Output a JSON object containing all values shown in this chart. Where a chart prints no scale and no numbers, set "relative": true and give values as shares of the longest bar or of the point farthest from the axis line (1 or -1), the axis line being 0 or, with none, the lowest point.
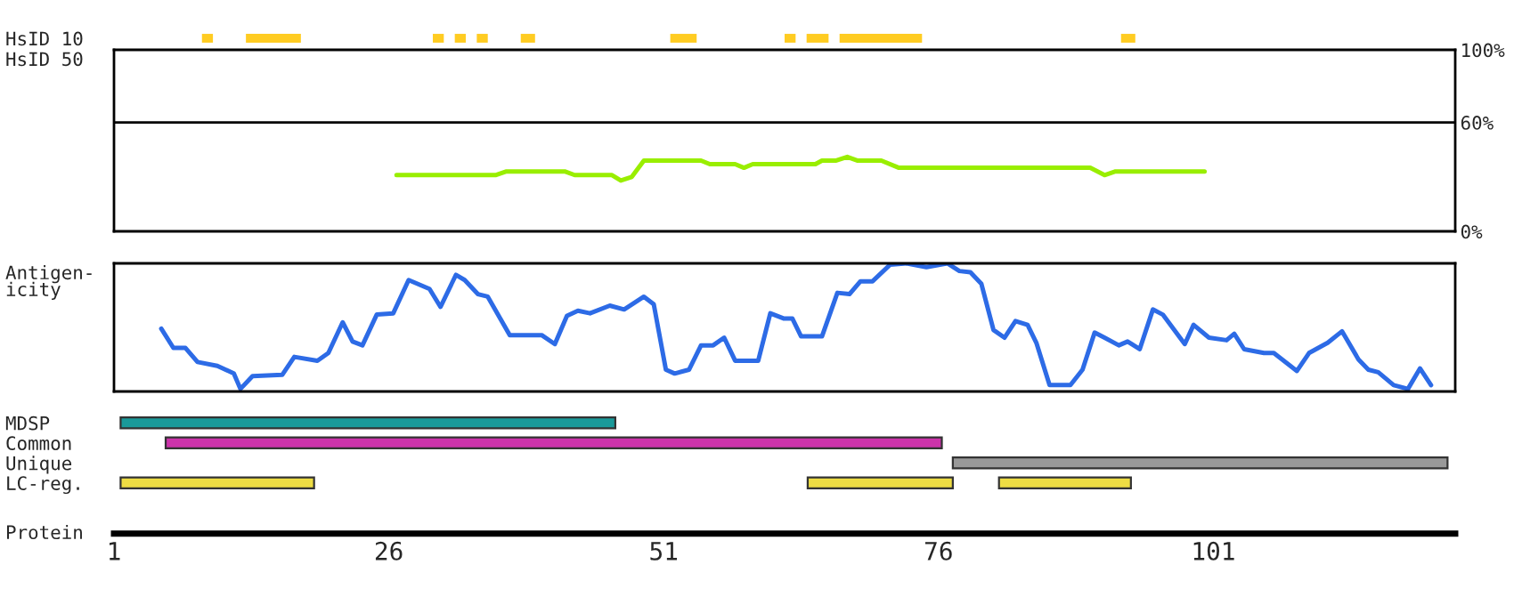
{
  "chart_data": [
    {
      "type": "bar",
      "orientation": "horizontal",
      "categories": [
        "HsID 10"
      ],
      "xlim": [
        1,
        123
      ],
      "tick_labels": "y",
      "series": [
        {
          "color": "#ffcc22",
          "base": [
            9
          ],
          "values": [
            1
          ]
        },
        {
          "color": "#ffcc22",
          "base": [
            13
          ],
          "values": [
            5
          ]
        },
        {
          "color": "#ffcc22",
          "base": [
            30
          ],
          "values": [
            1
          ]
        },
        {
          "color": "#ffcc22",
          "base": [
            32
          ],
          "values": [
            1
          ]
        },
        {
          "color": "#ffcc22",
          "base": [
            34
          ],
          "values": [
            1
          ]
        },
        {
          "color": "#ffcc22",
          "base": [
            38
          ],
          "values": [
            1.3
          ]
        },
        {
          "color": "#ffcc22",
          "base": [
            51.6
          ],
          "values": [
            2.4
          ]
        },
        {
          "color": "#ffcc22",
          "base": [
            62
          ],
          "values": [
            1
          ]
        },
        {
          "color": "#ffcc22",
          "base": [
            64
          ],
          "values": [
            2
          ]
        },
        {
          "color": "#ffcc22",
          "base": [
            67
          ],
          "values": [
            7.5
          ]
        },
        {
          "color": "#ffcc22",
          "base": [
            92.6
          ],
          "values": [
            1.3
          ]
        }
      ]
    },
    {
      "type": "line",
      "ylabel": "HsID 50",
      "xlim": [
        1,
        123
      ],
      "ylim": [
        0,
        100
      ],
      "tick_labels": "y",
      "yticks": [
        {
          "value": 100,
          "label": "100%"
        },
        {
          "value": 60,
          "label": "60%"
        },
        {
          "value": 0,
          "label": "0%"
        }
      ],
      "ref_lines": [
        {
          "axis": "y",
          "value": 60,
          "color": "#000000"
        }
      ],
      "series": [
        {
          "color": "#99ee00",
          "x": [
            26.7,
            35.7,
            36.7,
            42,
            42.9,
            46.3,
            47.1,
            48.1,
            49.2,
            54.4,
            55.2,
            57.5,
            58.3,
            59.1,
            64.8,
            65.4,
            66.7,
            67.7,
            68.6,
            70.8,
            72.4,
            89.8,
            91.1,
            92.1,
            100.2
          ],
          "values": [
            31,
            31,
            33,
            33,
            31,
            31,
            28,
            30,
            39,
            39,
            37,
            37,
            35,
            37,
            37,
            39,
            39,
            41,
            39,
            39,
            35,
            35,
            31,
            33,
            33
          ]
        }
      ]
    },
    {
      "type": "line",
      "ylabel": "Antigen-\nicity",
      "xlim": [
        1,
        123
      ],
      "relative": true,
      "tick_labels": false,
      "series": [
        {
          "color": "#2d6be6",
          "x": [
            5.3,
            6.4,
            7.5,
            8.6,
            10.4,
            11.9,
            12.5,
            13.6,
            16.3,
            17.4,
            19.5,
            20.5,
            21.8,
            22.7,
            23.6,
            24.9,
            26.4,
            27.8,
            29.7,
            30.7,
            32.1,
            32.9,
            34.1,
            35.0,
            37.0,
            39.9,
            41.1,
            42.2,
            43.2,
            44.3,
            46.1,
            47.4,
            49.2,
            50.1,
            51.2,
            52.0,
            53.3,
            54.4,
            55.5,
            56.5,
            57.5,
            59.6,
            60.7,
            61.9,
            62.7,
            63.5,
            65.4,
            66.8,
            67.9,
            68.9,
            70.0,
            71.6,
            73.1,
            74.9,
            76.8,
            77.9,
            78.9,
            79.9,
            81.0,
            82.0,
            83.0,
            84.1,
            84.9,
            86.1,
            88.0,
            89.1,
            90.2,
            91.1,
            92.4,
            93.2,
            94.3,
            95.5,
            96.4,
            98.4,
            99.2,
            100.6,
            102.2,
            102.9,
            103.8,
            105.6,
            106.5,
            108.6,
            109.7,
            111.4,
            112.7,
            114.2,
            115.1,
            116.0,
            117.4,
            118.7,
            119.8,
            120.8
          ],
          "values": [
            0.49,
            0.34,
            0.34,
            0.23,
            0.2,
            0.14,
            0.02,
            0.12,
            0.13,
            0.27,
            0.24,
            0.3,
            0.54,
            0.39,
            0.36,
            0.6,
            0.61,
            0.87,
            0.8,
            0.66,
            0.91,
            0.87,
            0.76,
            0.74,
            0.44,
            0.44,
            0.37,
            0.59,
            0.63,
            0.61,
            0.67,
            0.64,
            0.74,
            0.68,
            0.17,
            0.14,
            0.17,
            0.36,
            0.36,
            0.42,
            0.24,
            0.24,
            0.61,
            0.57,
            0.57,
            0.43,
            0.43,
            0.77,
            0.76,
            0.86,
            0.86,
            0.99,
            1.0,
            0.97,
            1.0,
            0.94,
            0.93,
            0.84,
            0.48,
            0.42,
            0.55,
            0.52,
            0.38,
            0.05,
            0.05,
            0.17,
            0.46,
            0.42,
            0.36,
            0.39,
            0.33,
            0.64,
            0.6,
            0.37,
            0.52,
            0.42,
            0.4,
            0.45,
            0.33,
            0.3,
            0.3,
            0.16,
            0.3,
            0.38,
            0.47,
            0.25,
            0.17,
            0.15,
            0.05,
            0.02,
            0.18,
            0.05
          ]
        }
      ]
    },
    {
      "type": "bar",
      "orientation": "horizontal",
      "categories": [
        "MDSP",
        "Common",
        "Unique",
        "LC-reg."
      ],
      "xlabel": "Protein",
      "xlim": [
        1,
        123
      ],
      "xticks": [
        1,
        26,
        51,
        76,
        101
      ],
      "series": [
        {
          "color": "#1a9a9a",
          "base": [
            1.6,
            null,
            null,
            null
          ],
          "values": [
            45,
            null,
            null,
            null
          ]
        },
        {
          "color": "#cc33aa",
          "base": [
            null,
            5.7,
            null,
            null
          ],
          "values": [
            null,
            70.6,
            null,
            null
          ]
        },
        {
          "color": "#999999",
          "base": [
            null,
            null,
            77.3,
            null
          ],
          "values": [
            null,
            null,
            45,
            null
          ]
        },
        {
          "color": "#eedd44",
          "base": [
            null,
            null,
            null,
            1.6
          ],
          "values": [
            null,
            null,
            null,
            17.6
          ]
        },
        {
          "color": "#eedd44",
          "base": [
            null,
            null,
            null,
            64.1
          ],
          "values": [
            null,
            null,
            null,
            13.2
          ]
        },
        {
          "color": "#eedd44",
          "base": [
            null,
            null,
            null,
            81.5
          ],
          "values": [
            null,
            null,
            null,
            12
          ]
        }
      ]
    }
  ]
}
